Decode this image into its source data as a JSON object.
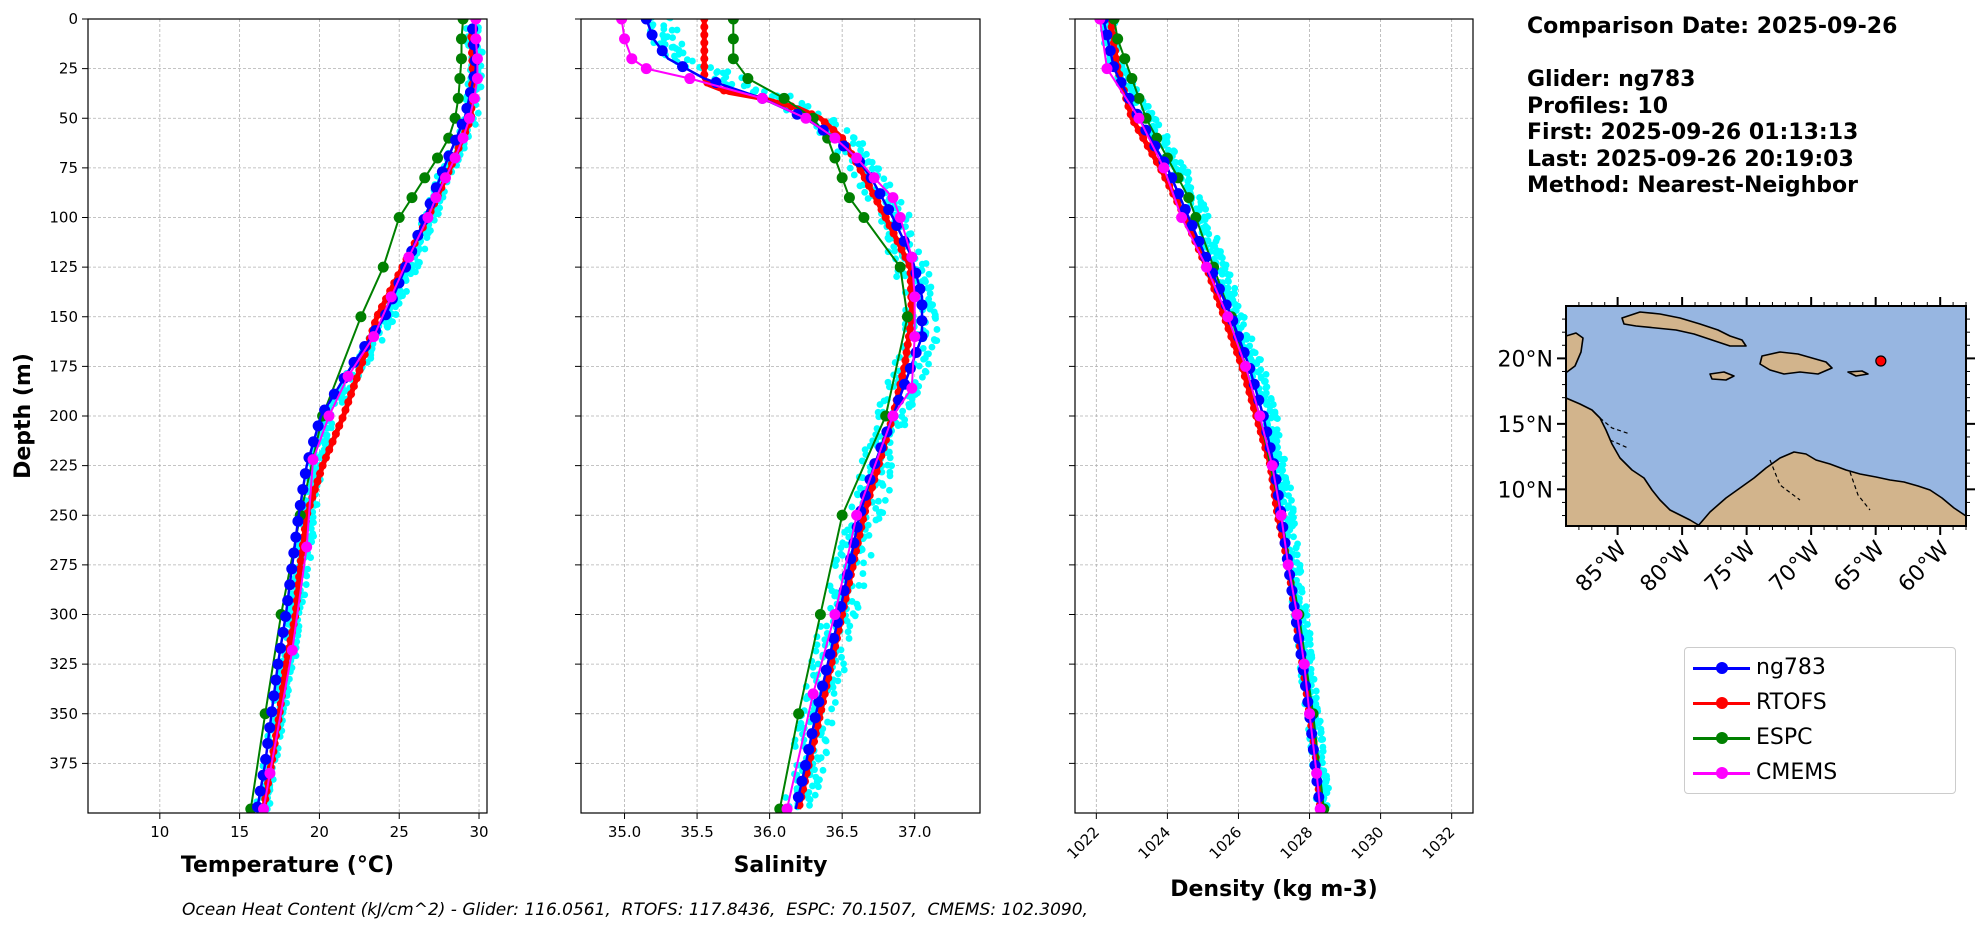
{
  "chart_data": [
    {
      "type": "line",
      "xlabel": "Temperature (°C)",
      "ylabel": "Depth (m)",
      "xlim": [
        5.5,
        30.5
      ],
      "ylim": [
        400,
        0
      ],
      "xticks": [
        10,
        15,
        20,
        25,
        30
      ],
      "yticks": [
        0,
        25,
        50,
        75,
        100,
        125,
        150,
        175,
        200,
        225,
        250,
        275,
        300,
        325,
        350,
        375
      ],
      "grid": true,
      "scatter": {
        "name": "glider profiles",
        "color": "#00ffff",
        "depth": [
          5,
          20,
          35,
          50,
          65,
          80,
          100,
          120,
          140,
          160,
          180,
          200,
          220,
          240,
          260,
          280,
          300,
          320,
          340,
          360,
          380,
          398
        ],
        "values": [
          29.6,
          29.8,
          29.7,
          29.5,
          28.7,
          27.8,
          27.0,
          26.0,
          25.0,
          23.6,
          22.0,
          20.6,
          20.0,
          19.5,
          19.2,
          18.9,
          18.4,
          18.1,
          17.6,
          17.2,
          16.8,
          16.4
        ],
        "spread": 0.45
      },
      "series": [
        {
          "name": "ng783",
          "color": "#0000ff",
          "depth": [
            5,
            25,
            50,
            75,
            100,
            125,
            150,
            175,
            200,
            225,
            250,
            275,
            300,
            325,
            350,
            375,
            398
          ],
          "values": [
            29.6,
            29.8,
            29.1,
            27.8,
            26.6,
            25.4,
            24.1,
            22.0,
            20.1,
            19.2,
            18.7,
            18.3,
            17.9,
            17.4,
            17.0,
            16.6,
            16.1
          ]
        },
        {
          "name": "RTOFS",
          "color": "#ff0000",
          "depth": [
            5,
            25,
            50,
            75,
            100,
            125,
            150,
            175,
            200,
            225,
            250,
            275,
            300,
            325,
            350,
            375,
            398
          ],
          "values": [
            29.5,
            29.6,
            29.5,
            28.2,
            26.8,
            25.2,
            23.6,
            22.6,
            21.5,
            20.2,
            19.2,
            18.8,
            18.5,
            17.9,
            17.5,
            17.0,
            16.5
          ]
        },
        {
          "name": "ESPC",
          "color": "#008000",
          "depth": [
            0,
            10,
            20,
            30,
            40,
            50,
            60,
            70,
            80,
            90,
            100,
            125,
            150,
            200,
            250,
            300,
            350,
            398
          ],
          "values": [
            29.0,
            28.9,
            28.9,
            28.8,
            28.7,
            28.5,
            28.1,
            27.4,
            26.6,
            25.8,
            25.0,
            24.0,
            22.6,
            20.2,
            18.8,
            17.6,
            16.6,
            15.7
          ]
        },
        {
          "name": "CMEMS",
          "color": "#ff00ff",
          "depth": [
            0,
            10,
            20,
            30,
            40,
            50,
            60,
            70,
            80,
            90,
            100,
            120,
            140,
            160,
            180,
            200,
            222,
            266,
            318,
            380,
            398
          ],
          "values": [
            29.8,
            29.8,
            29.9,
            29.9,
            29.7,
            29.4,
            29.0,
            28.5,
            27.9,
            27.3,
            26.8,
            25.6,
            24.5,
            23.4,
            21.8,
            20.6,
            19.6,
            19.2,
            18.3,
            16.9,
            16.5
          ]
        }
      ]
    },
    {
      "type": "line",
      "xlabel": "Salinity",
      "ylabel": "",
      "xlim": [
        34.7,
        37.45
      ],
      "ylim": [
        400,
        0
      ],
      "xticks": [
        "35.0",
        "35.5",
        "36.0",
        "36.5",
        "37.0"
      ],
      "yticks": [
        0,
        25,
        50,
        75,
        100,
        125,
        150,
        175,
        200,
        225,
        250,
        275,
        300,
        325,
        350,
        375
      ],
      "grid": true,
      "scatter": {
        "name": "glider profiles",
        "color": "#00ffff",
        "depth": [
          0,
          10,
          20,
          30,
          40,
          50,
          60,
          70,
          80,
          100,
          120,
          140,
          160,
          180,
          200,
          220,
          240,
          260,
          280,
          300,
          320,
          340,
          360,
          380,
          398
        ],
        "values": [
          35.25,
          35.3,
          35.4,
          35.7,
          36.1,
          36.35,
          36.5,
          36.6,
          36.7,
          36.85,
          36.95,
          37.05,
          37.05,
          36.95,
          36.85,
          36.75,
          36.7,
          36.62,
          36.55,
          36.48,
          36.42,
          36.35,
          36.3,
          36.25,
          36.2
        ],
        "spread": 0.12
      },
      "series": [
        {
          "name": "ng783",
          "color": "#0000ff",
          "depth": [
            0,
            10,
            20,
            30,
            40,
            50,
            60,
            70,
            80,
            100,
            120,
            140,
            160,
            180,
            200,
            225,
            250,
            275,
            300,
            325,
            350,
            375,
            398
          ],
          "values": [
            35.15,
            35.2,
            35.3,
            35.55,
            35.95,
            36.25,
            36.45,
            36.6,
            36.7,
            36.85,
            36.98,
            37.05,
            37.05,
            36.95,
            36.85,
            36.72,
            36.62,
            36.55,
            36.48,
            36.4,
            36.32,
            36.25,
            36.18
          ]
        },
        {
          "name": "RTOFS",
          "color": "#ff0000",
          "depth": [
            0,
            10,
            20,
            30,
            33,
            37,
            40,
            45,
            50,
            60,
            75,
            100,
            125,
            150,
            175,
            200,
            250,
            300,
            350,
            398
          ],
          "values": [
            35.55,
            35.55,
            35.55,
            35.55,
            35.58,
            35.72,
            35.95,
            36.2,
            36.35,
            36.5,
            36.62,
            36.8,
            36.97,
            36.98,
            36.93,
            36.85,
            36.65,
            36.5,
            36.35,
            36.2
          ]
        },
        {
          "name": "ESPC",
          "color": "#008000",
          "depth": [
            0,
            10,
            20,
            30,
            40,
            50,
            60,
            70,
            80,
            90,
            100,
            125,
            150,
            200,
            250,
            300,
            350,
            398
          ],
          "values": [
            35.75,
            35.75,
            35.75,
            35.85,
            36.1,
            36.3,
            36.4,
            36.45,
            36.5,
            36.55,
            36.65,
            36.9,
            36.95,
            36.8,
            36.5,
            36.35,
            36.2,
            36.07
          ]
        },
        {
          "name": "CMEMS",
          "color": "#ff00ff",
          "depth": [
            0,
            10,
            20,
            25,
            30,
            40,
            50,
            60,
            70,
            80,
            90,
            100,
            120,
            140,
            160,
            186,
            200,
            250,
            300,
            340,
            398
          ],
          "values": [
            34.98,
            35.0,
            35.05,
            35.15,
            35.45,
            35.95,
            36.25,
            36.45,
            36.6,
            36.72,
            36.85,
            36.9,
            36.98,
            37.0,
            37.0,
            36.98,
            36.85,
            36.6,
            36.45,
            36.3,
            36.12
          ]
        }
      ]
    },
    {
      "type": "line",
      "xlabel": "Density (kg m-3)",
      "ylabel": "",
      "xlim": [
        1021.4,
        1032.6
      ],
      "ylim": [
        400,
        0
      ],
      "xticks": [
        1022,
        1024,
        1026,
        1028,
        1030,
        1032
      ],
      "yticks": [
        0,
        25,
        50,
        75,
        100,
        125,
        150,
        175,
        200,
        225,
        250,
        275,
        300,
        325,
        350,
        375
      ],
      "grid": true,
      "scatter": {
        "name": "glider profiles",
        "color": "#00ffff",
        "depth": [
          0,
          20,
          40,
          60,
          80,
          100,
          120,
          140,
          160,
          180,
          200,
          220,
          240,
          260,
          280,
          300,
          320,
          340,
          360,
          380,
          398
        ],
        "values": [
          1022.3,
          1022.5,
          1023.1,
          1023.8,
          1024.5,
          1025.0,
          1025.4,
          1025.8,
          1026.2,
          1026.6,
          1026.9,
          1027.1,
          1027.3,
          1027.45,
          1027.6,
          1027.75,
          1027.9,
          1028.0,
          1028.15,
          1028.3,
          1028.4
        ],
        "spread": 0.2
      },
      "series": [
        {
          "name": "ng783",
          "color": "#0000ff",
          "depth": [
            0,
            25,
            50,
            75,
            100,
            125,
            150,
            175,
            200,
            225,
            250,
            275,
            300,
            325,
            350,
            375,
            398
          ],
          "values": [
            1022.2,
            1022.5,
            1023.2,
            1024.0,
            1024.6,
            1025.2,
            1025.8,
            1026.3,
            1026.7,
            1027.0,
            1027.2,
            1027.4,
            1027.6,
            1027.8,
            1028.0,
            1028.15,
            1028.3
          ]
        },
        {
          "name": "RTOFS",
          "color": "#ff0000",
          "depth": [
            0,
            25,
            50,
            75,
            100,
            125,
            150,
            175,
            200,
            225,
            250,
            275,
            300,
            325,
            350,
            375,
            398
          ],
          "values": [
            1022.4,
            1022.6,
            1023.0,
            1023.8,
            1024.5,
            1025.1,
            1025.6,
            1026.1,
            1026.5,
            1026.9,
            1027.1,
            1027.4,
            1027.6,
            1027.8,
            1028.0,
            1028.2,
            1028.3
          ]
        },
        {
          "name": "ESPC",
          "color": "#008000",
          "depth": [
            0,
            10,
            20,
            30,
            40,
            50,
            60,
            70,
            80,
            90,
            100,
            125,
            150,
            200,
            250,
            300,
            350,
            398
          ],
          "values": [
            1022.5,
            1022.6,
            1022.8,
            1023.0,
            1023.2,
            1023.4,
            1023.7,
            1024.0,
            1024.3,
            1024.6,
            1024.8,
            1025.3,
            1025.8,
            1026.6,
            1027.2,
            1027.7,
            1028.1,
            1028.4
          ]
        },
        {
          "name": "CMEMS",
          "color": "#ff00ff",
          "depth": [
            0,
            25,
            50,
            75,
            100,
            125,
            150,
            175,
            200,
            225,
            250,
            275,
            300,
            325,
            350,
            380,
            398
          ],
          "values": [
            1022.1,
            1022.3,
            1023.2,
            1023.9,
            1024.4,
            1025.1,
            1025.7,
            1026.2,
            1026.6,
            1026.95,
            1027.2,
            1027.4,
            1027.65,
            1027.85,
            1028.0,
            1028.2,
            1028.3
          ]
        }
      ]
    }
  ],
  "info": {
    "comparison_date": "Comparison Date: 2025-09-26",
    "glider": "Glider: ng783",
    "profiles": "Profiles: 10",
    "first": "First: 2025-09-26 01:13:13",
    "last": "Last: 2025-09-26 20:19:03",
    "method": "Method: Nearest-Neighbor"
  },
  "map": {
    "lon_range": [
      -89,
      -58
    ],
    "lat_range": [
      7.2,
      24.0
    ],
    "lat_ticks": [
      "10°N",
      "15°N",
      "20°N"
    ],
    "lat_tick_values": [
      10,
      15,
      20
    ],
    "lon_ticks": [
      "85°W",
      "80°W",
      "75°W",
      "70°W",
      "65°W",
      "60°W"
    ],
    "lon_tick_values": [
      -85,
      -80,
      -75,
      -70,
      -65,
      -60
    ],
    "glider_position": {
      "lon": -64.6,
      "lat": 19.8
    },
    "ocean_color": "#97b6e1",
    "land_color": "#d2b48c"
  },
  "legend": {
    "items": [
      {
        "label": "ng783",
        "color": "#0000ff"
      },
      {
        "label": "RTOFS",
        "color": "#ff0000"
      },
      {
        "label": "ESPC",
        "color": "#008000"
      },
      {
        "label": "CMEMS",
        "color": "#ff00ff"
      }
    ]
  },
  "footer": {
    "ohc": "Ocean Heat Content (kJ/cm^2) - Glider: 116.0561,  RTOFS: 117.8436,  ESPC: 70.1507,  CMEMS: 102.3090,"
  }
}
